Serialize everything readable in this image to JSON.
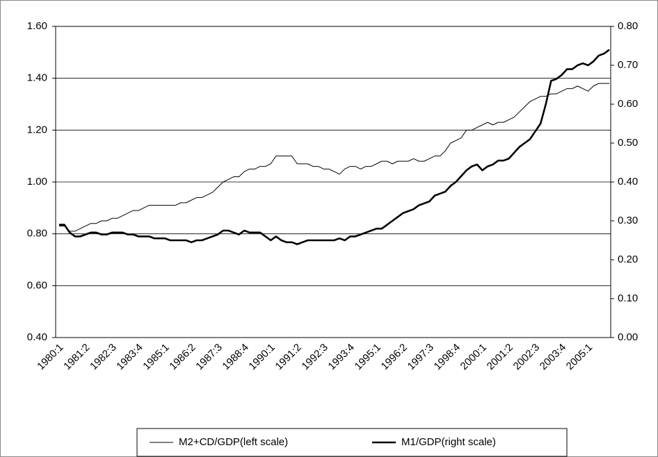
{
  "chart_data": {
    "type": "line",
    "categories": [
      "1980:1",
      null,
      null,
      null,
      null,
      "1981:2",
      null,
      null,
      null,
      null,
      "1982:3",
      null,
      null,
      null,
      null,
      "1983:4",
      null,
      null,
      null,
      null,
      "1985:1",
      null,
      null,
      null,
      null,
      "1986:2",
      null,
      null,
      null,
      null,
      "1987:3",
      null,
      null,
      null,
      null,
      "1988:4",
      null,
      null,
      null,
      null,
      "1990:1",
      null,
      null,
      null,
      null,
      "1991:2",
      null,
      null,
      null,
      null,
      "1992:3",
      null,
      null,
      null,
      null,
      "1993:4",
      null,
      null,
      null,
      null,
      "1995:1",
      null,
      null,
      null,
      null,
      "1996:2",
      null,
      null,
      null,
      null,
      "1997:3",
      null,
      null,
      null,
      null,
      "1998:4",
      null,
      null,
      null,
      null,
      "2000:1",
      null,
      null,
      null,
      null,
      "2001:2",
      null,
      null,
      null,
      null,
      "2002:3",
      null,
      null,
      null,
      null,
      "2003:4",
      null,
      null,
      null,
      null,
      "2005:1",
      null,
      null,
      null,
      null
    ],
    "series": [
      {
        "name": "M2+CD/GDP(left scale)",
        "color": "#000000",
        "line_width": 1,
        "axis": "y",
        "values": [
          0.83,
          0.83,
          0.81,
          0.81,
          0.82,
          0.83,
          0.84,
          0.84,
          0.85,
          0.85,
          0.86,
          0.86,
          0.87,
          0.88,
          0.89,
          0.89,
          0.9,
          0.91,
          0.91,
          0.91,
          0.91,
          0.91,
          0.91,
          0.92,
          0.92,
          0.93,
          0.94,
          0.94,
          0.95,
          0.96,
          0.98,
          1.0,
          1.01,
          1.02,
          1.02,
          1.04,
          1.05,
          1.05,
          1.06,
          1.06,
          1.07,
          1.1,
          1.1,
          1.1,
          1.1,
          1.07,
          1.07,
          1.07,
          1.06,
          1.06,
          1.05,
          1.05,
          1.04,
          1.03,
          1.05,
          1.06,
          1.06,
          1.05,
          1.06,
          1.06,
          1.07,
          1.08,
          1.08,
          1.07,
          1.08,
          1.08,
          1.08,
          1.09,
          1.08,
          1.08,
          1.09,
          1.1,
          1.1,
          1.12,
          1.15,
          1.16,
          1.17,
          1.2,
          1.2,
          1.21,
          1.22,
          1.23,
          1.22,
          1.23,
          1.23,
          1.24,
          1.25,
          1.27,
          1.29,
          1.31,
          1.32,
          1.33,
          1.33,
          1.34,
          1.34,
          1.35,
          1.36,
          1.36,
          1.37,
          1.36,
          1.35,
          1.37,
          1.38,
          1.38,
          1.38
        ]
      },
      {
        "name": "M1/GDP(right scale)",
        "color": "#000000",
        "line_width": 2.6,
        "axis": "y2",
        "values": [
          0.29,
          0.29,
          0.27,
          0.26,
          0.26,
          0.265,
          0.27,
          0.27,
          0.265,
          0.265,
          0.27,
          0.27,
          0.27,
          0.265,
          0.265,
          0.26,
          0.26,
          0.26,
          0.255,
          0.255,
          0.255,
          0.25,
          0.25,
          0.25,
          0.25,
          0.245,
          0.25,
          0.25,
          0.255,
          0.26,
          0.265,
          0.275,
          0.275,
          0.27,
          0.265,
          0.275,
          0.27,
          0.27,
          0.27,
          0.26,
          0.25,
          0.26,
          0.25,
          0.245,
          0.245,
          0.24,
          0.245,
          0.25,
          0.25,
          0.25,
          0.25,
          0.25,
          0.25,
          0.255,
          0.25,
          0.26,
          0.26,
          0.265,
          0.27,
          0.275,
          0.28,
          0.28,
          0.29,
          0.3,
          0.31,
          0.32,
          0.325,
          0.33,
          0.34,
          0.345,
          0.35,
          0.365,
          0.37,
          0.375,
          0.39,
          0.4,
          0.415,
          0.43,
          0.44,
          0.445,
          0.43,
          0.44,
          0.445,
          0.455,
          0.455,
          0.46,
          0.475,
          0.49,
          0.5,
          0.51,
          0.53,
          0.55,
          0.6,
          0.66,
          0.665,
          0.675,
          0.69,
          0.69,
          0.7,
          0.705,
          0.7,
          0.71,
          0.725,
          0.73,
          0.74
        ]
      }
    ],
    "ylim": [
      0.4,
      1.6
    ],
    "yticks": [
      {
        "value": 0.4,
        "label": "0.40"
      },
      {
        "value": 0.6,
        "label": "0.60"
      },
      {
        "value": 0.8,
        "label": "0.80"
      },
      {
        "value": 1.0,
        "label": "1.00"
      },
      {
        "value": 1.2,
        "label": "1.20"
      },
      {
        "value": 1.4,
        "label": "1.40"
      },
      {
        "value": 1.6,
        "label": "1.60"
      }
    ],
    "y2lim": [
      0,
      0.8
    ],
    "y2ticks": [
      {
        "value": 0,
        "label": "0.00"
      },
      {
        "value": 0.1,
        "label": "0.10"
      },
      {
        "value": 0.2,
        "label": "0.20"
      },
      {
        "value": 0.3,
        "label": "0.30"
      },
      {
        "value": 0.4,
        "label": "0.40"
      },
      {
        "value": 0.5,
        "label": "0.50"
      },
      {
        "value": 0.6,
        "label": "0.60"
      },
      {
        "value": 0.7,
        "label": "0.70"
      },
      {
        "value": 0.8,
        "label": "0.80"
      }
    ],
    "grid": true,
    "legend": "bottom"
  }
}
